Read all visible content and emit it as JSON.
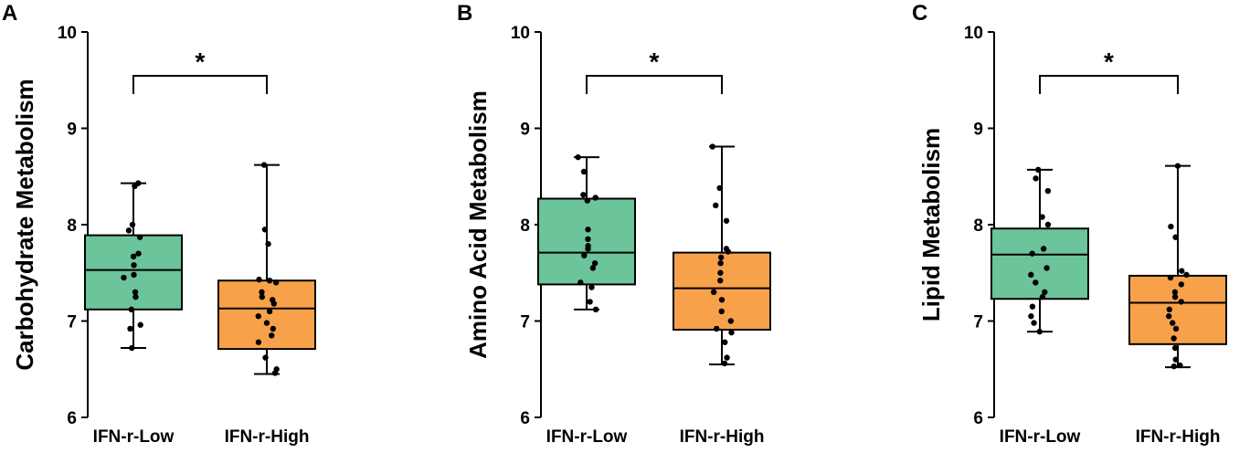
{
  "colors": {
    "low": "#6cc49a",
    "high": "#f7a24a",
    "ink": "#000000"
  },
  "chart_data": [
    {
      "type": "box",
      "panel": "A",
      "ylabel": "Carbohydrate Metabolism",
      "ylim": [
        6,
        10
      ],
      "yticks": [
        6,
        7,
        8,
        9,
        10
      ],
      "categories": [
        "IFN-r-Low",
        "IFN-r-High"
      ],
      "significance": "*",
      "boxes": [
        {
          "name": "IFN-r-Low",
          "min": 6.72,
          "q1": 7.12,
          "median": 7.53,
          "q3": 7.89,
          "max": 8.43,
          "points": [
            8.43,
            8.4,
            8.0,
            7.94,
            7.87,
            7.7,
            7.67,
            7.58,
            7.48,
            7.45,
            7.3,
            7.25,
            7.12,
            6.96,
            6.92,
            6.72
          ]
        },
        {
          "name": "IFN-r-High",
          "min": 6.45,
          "q1": 6.71,
          "median": 7.13,
          "q3": 7.42,
          "max": 8.62,
          "points": [
            8.62,
            7.95,
            7.8,
            7.43,
            7.42,
            7.4,
            7.3,
            7.25,
            7.22,
            7.18,
            7.1,
            7.05,
            6.98,
            6.92,
            6.85,
            6.78,
            6.62,
            6.5,
            6.46
          ]
        }
      ]
    },
    {
      "type": "box",
      "panel": "B",
      "ylabel": "Amino Acid Metabolism",
      "ylim": [
        6,
        10
      ],
      "yticks": [
        6,
        7,
        8,
        9,
        10
      ],
      "categories": [
        "IFN-r-Low",
        "IFN-r-High"
      ],
      "significance": "*",
      "boxes": [
        {
          "name": "IFN-r-Low",
          "min": 7.12,
          "q1": 7.38,
          "median": 7.71,
          "q3": 8.27,
          "max": 8.7,
          "points": [
            8.7,
            8.55,
            8.31,
            8.28,
            8.25,
            7.95,
            7.85,
            7.78,
            7.75,
            7.68,
            7.6,
            7.55,
            7.4,
            7.35,
            7.2,
            7.12
          ]
        },
        {
          "name": "IFN-r-High",
          "min": 6.55,
          "q1": 6.91,
          "median": 7.34,
          "q3": 7.71,
          "max": 8.81,
          "points": [
            8.81,
            8.38,
            8.2,
            8.04,
            7.75,
            7.72,
            7.66,
            7.6,
            7.5,
            7.42,
            7.3,
            7.22,
            7.1,
            7.0,
            6.92,
            6.88,
            6.78,
            6.62,
            6.56
          ]
        }
      ]
    },
    {
      "type": "box",
      "panel": "C",
      "ylabel": "Lipid Metabolism",
      "ylim": [
        6,
        10
      ],
      "yticks": [
        6,
        7,
        8,
        9,
        10
      ],
      "categories": [
        "IFN-r-Low",
        "IFN-r-High"
      ],
      "significance": "*",
      "boxes": [
        {
          "name": "IFN-r-Low",
          "min": 6.89,
          "q1": 7.23,
          "median": 7.69,
          "q3": 7.96,
          "max": 8.57,
          "points": [
            8.57,
            8.48,
            8.35,
            8.08,
            8.0,
            7.75,
            7.7,
            7.55,
            7.48,
            7.4,
            7.3,
            7.25,
            7.15,
            7.05,
            6.98,
            6.89
          ]
        },
        {
          "name": "IFN-r-High",
          "min": 6.52,
          "q1": 6.76,
          "median": 7.19,
          "q3": 7.47,
          "max": 8.61,
          "points": [
            8.61,
            7.98,
            7.87,
            7.52,
            7.48,
            7.45,
            7.38,
            7.3,
            7.25,
            7.2,
            7.12,
            7.05,
            6.98,
            6.92,
            6.82,
            6.72,
            6.6,
            6.54,
            6.53
          ]
        }
      ]
    }
  ]
}
